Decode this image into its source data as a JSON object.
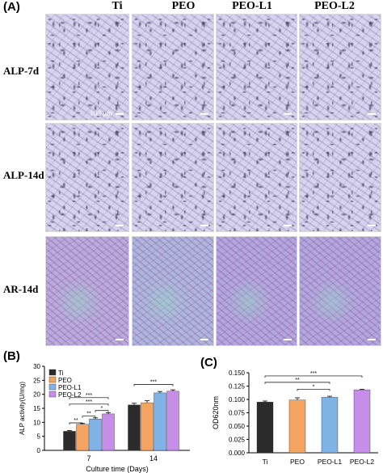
{
  "figure": {
    "panel_a_label": "(A)",
    "panel_b_label": "(B)",
    "panel_c_label": "(C)",
    "columns": [
      "Ti",
      "PEO",
      "PEO-L1",
      "PEO-L2"
    ],
    "rows": [
      "ALP-7d",
      "ALP-14d",
      "AR-14d"
    ],
    "scale_text": "100 μm"
  },
  "chart_data": [
    {
      "type": "bar",
      "panel": "B",
      "categories": [
        "7",
        "14"
      ],
      "series": [
        {
          "name": "Ti",
          "values": [
            6.8,
            16.2
          ],
          "errors": [
            0.3,
            0.6
          ],
          "color": "#2b2b2b"
        },
        {
          "name": "PEO",
          "values": [
            9.3,
            17.0
          ],
          "errors": [
            0.3,
            0.7
          ],
          "color": "#f4a460"
        },
        {
          "name": "PEO-L1",
          "values": [
            11.2,
            20.5
          ],
          "errors": [
            0.4,
            0.5
          ],
          "color": "#7fb2e6"
        },
        {
          "name": "PEO-L2",
          "values": [
            13.0,
            21.1
          ],
          "errors": [
            0.4,
            0.5
          ],
          "color": "#c68ee8"
        }
      ],
      "xlabel": "Culture time (Days)",
      "ylabel": "ALP activity(U/mg)",
      "ylim": [
        0,
        30
      ],
      "yticks": [
        0,
        5,
        10,
        15,
        20,
        25,
        30
      ],
      "legend": "top-left",
      "significance": [
        "**",
        "**",
        "***",
        "*",
        "***",
        "***"
      ]
    },
    {
      "type": "bar",
      "panel": "C",
      "categories": [
        "Ti",
        "PEO",
        "PEO-L1",
        "PEO-L2"
      ],
      "values": [
        0.095,
        0.099,
        0.104,
        0.118
      ],
      "errors": [
        0.002,
        0.004,
        0.002,
        0.001
      ],
      "colors": [
        "#2b2b2b",
        "#f4a460",
        "#7fb2e6",
        "#c68ee8"
      ],
      "ylabel": "OD620nm",
      "ylim": [
        0,
        0.15
      ],
      "yticks": [
        "0.000",
        "0.025",
        "0.050",
        "0.075",
        "0.100",
        "0.125",
        "0.150"
      ],
      "significance": [
        "***",
        "**",
        "*"
      ]
    }
  ]
}
